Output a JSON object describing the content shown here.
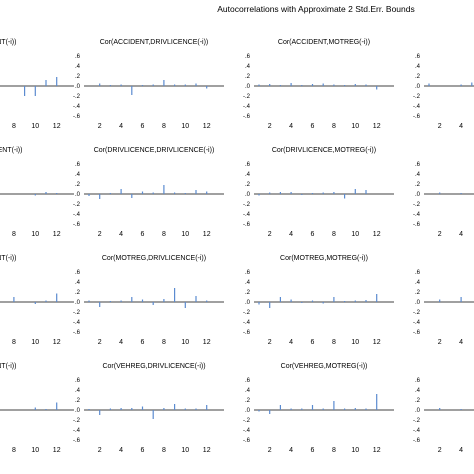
{
  "figure": {
    "title": "Autocorrelations with Approximate 2 Std.Err. Bounds"
  },
  "chart_data": {
    "type": "bar",
    "layout": "grid",
    "ylim": [
      -0.6,
      0.6
    ],
    "yticks": [
      ".6",
      ".4",
      ".2",
      ".0",
      "-.2",
      "-.4",
      "-.6"
    ],
    "xticks": [
      "2",
      "4",
      "6",
      "8",
      "10",
      "12"
    ],
    "lags": [
      1,
      2,
      3,
      4,
      5,
      6,
      7,
      8,
      9,
      10,
      11,
      12
    ],
    "bar_color": "#5b8bd0",
    "rows": [
      {
        "panels": [
          {
            "title": "ENT(-i))",
            "values": [
              0.0,
              0.0,
              0.0,
              0.0,
              0.0,
              0.0,
              0.0,
              0.0,
              -0.2,
              -0.2,
              0.12,
              0.18
            ]
          },
          {
            "title": "Cor(ACCIDENT,DRIVLICENCE(-i))",
            "values": [
              0.0,
              0.05,
              0.02,
              0.03,
              -0.18,
              0.02,
              0.03,
              0.12,
              0.03,
              0.03,
              0.05,
              -0.05
            ]
          },
          {
            "title": "Cor(ACCIDENT,MOTREG(-i))",
            "values": [
              0.03,
              0.04,
              0.02,
              0.06,
              0.02,
              0.04,
              0.05,
              0.03,
              0.02,
              0.04,
              0.03,
              -0.07
            ]
          },
          {
            "title": "",
            "values": [
              0.05,
              0.0,
              0.0,
              0.03,
              0.07,
              0.15
            ]
          }
        ]
      },
      {
        "panels": [
          {
            "title": "CIDENT(-i))",
            "values": [
              0.0,
              0.0,
              0.0,
              0.0,
              0.0,
              0.0,
              0.0,
              0.0,
              0.0,
              -0.03,
              0.04,
              0.02
            ]
          },
          {
            "title": "Cor(DRIVLICENCE,DRIVLICENCE(-i))",
            "values": [
              -0.04,
              -0.1,
              0.02,
              0.1,
              -0.08,
              0.05,
              0.03,
              0.18,
              0.03,
              0.02,
              0.08,
              0.05
            ]
          },
          {
            "title": "Cor(DRIVLICENCE,MOTREG(-i))",
            "values": [
              -0.03,
              0.03,
              0.04,
              0.04,
              -0.02,
              0.02,
              0.03,
              0.04,
              -0.09,
              0.1,
              0.08,
              0.0
            ]
          },
          {
            "title": "Cor(DR",
            "values": [
              0.0,
              0.03,
              0.0,
              0.02,
              0.0,
              0.0
            ]
          }
        ]
      },
      {
        "panels": [
          {
            "title": "ENT(-i))",
            "values": [
              0.0,
              0.0,
              0.0,
              0.0,
              0.0,
              0.0,
              0.0,
              0.1,
              0.0,
              -0.04,
              0.03,
              0.17
            ]
          },
          {
            "title": "Cor(MOTREG,DRIVLICENCE(-i))",
            "values": [
              0.03,
              -0.1,
              0.02,
              0.03,
              0.1,
              0.05,
              -0.06,
              0.06,
              0.28,
              -0.12,
              0.12,
              0.03
            ]
          },
          {
            "title": "Cor(MOTREG,MOTREG(-i))",
            "values": [
              -0.05,
              -0.12,
              0.1,
              0.05,
              -0.02,
              0.03,
              -0.03,
              0.1,
              0.02,
              0.03,
              0.04,
              0.16
            ]
          },
          {
            "title": "",
            "values": [
              0.0,
              0.05,
              0.0,
              0.1,
              0.0,
              0.12
            ]
          }
        ]
      },
      {
        "panels": [
          {
            "title": "ENT(-i))",
            "values": [
              0.0,
              0.0,
              0.0,
              0.0,
              0.0,
              0.0,
              0.0,
              0.0,
              0.0,
              0.05,
              0.02,
              0.15
            ]
          },
          {
            "title": "Cor(VEHREG,DRIVLICENCE(-i))",
            "values": [
              0.02,
              -0.1,
              0.03,
              0.04,
              0.04,
              0.07,
              -0.18,
              0.04,
              0.12,
              0.03,
              0.03,
              0.1
            ]
          },
          {
            "title": "Cor(VEHREG,MOTREG(-i))",
            "values": [
              -0.03,
              -0.08,
              0.1,
              0.03,
              0.03,
              0.1,
              0.03,
              0.18,
              0.03,
              0.04,
              0.03,
              0.32
            ]
          },
          {
            "title": "",
            "values": [
              0.0,
              0.04,
              0.0,
              0.02,
              0.0,
              0.08
            ]
          }
        ]
      }
    ]
  }
}
